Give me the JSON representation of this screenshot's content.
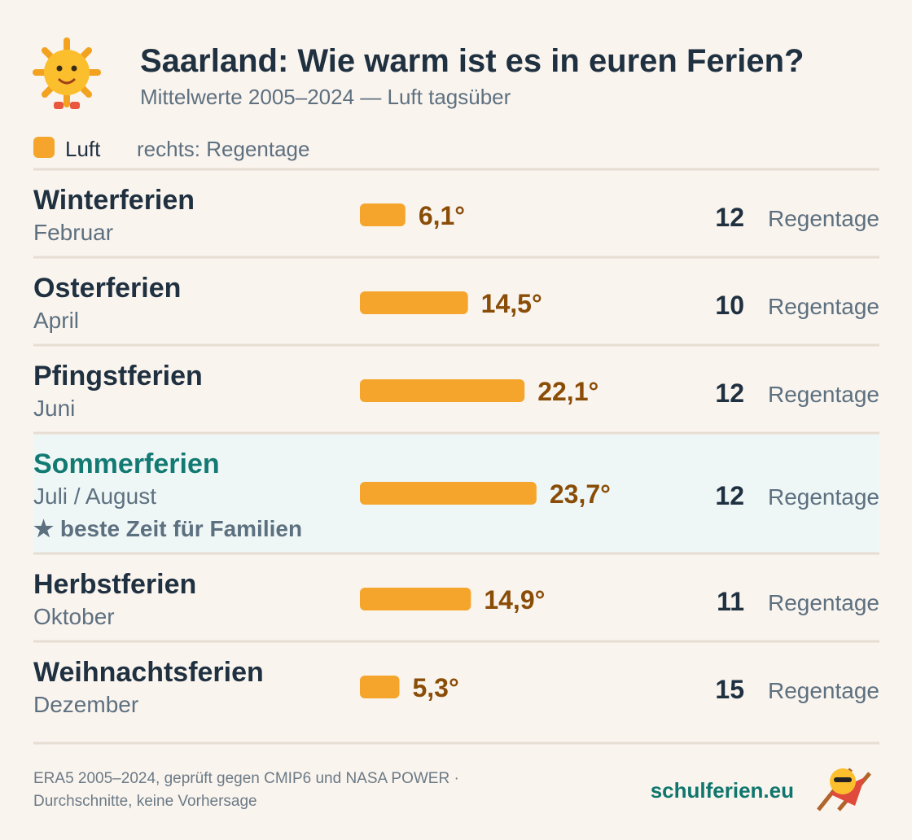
{
  "chart_data": {
    "type": "hbar",
    "title": "Saarland: Wie warm ist es in euren Ferien?",
    "subtitle": "Mittelwerte 2005–2024 — Luft tagsüber",
    "right_label": "rechts: Regentage",
    "categories": [
      "Winterferien",
      "Osterferien",
      "Pfingstferien",
      "Sommerferien",
      "Herbstferien",
      "Weihnachtsferien"
    ],
    "months": [
      "Februar",
      "April",
      "Juni",
      "Juli / August",
      "Oktober",
      "Dezember"
    ],
    "notes": [
      null,
      null,
      null,
      "★ beste Zeit für Familien",
      null,
      null
    ],
    "series": [
      {
        "name": "Luft",
        "color": "#f5a52b",
        "values": [
          6.1,
          14.5,
          22.1,
          23.7,
          14.9,
          5.3
        ],
        "value_labels": [
          "6,1°",
          "14,5°",
          "22,1°",
          "23,7°",
          "14,9°",
          "5,3°"
        ]
      }
    ],
    "rain_days": [
      12,
      10,
      12,
      12,
      11,
      15
    ],
    "rain_unit": "Regentage",
    "xlim": [
      0,
      30
    ],
    "source": [
      "ERA5 2005–2024, geprüft gegen CMIP6 und NASA POWER ·",
      "Durchschnitte, keine Vorhersage"
    ],
    "brand": "schulferien.eu"
  }
}
